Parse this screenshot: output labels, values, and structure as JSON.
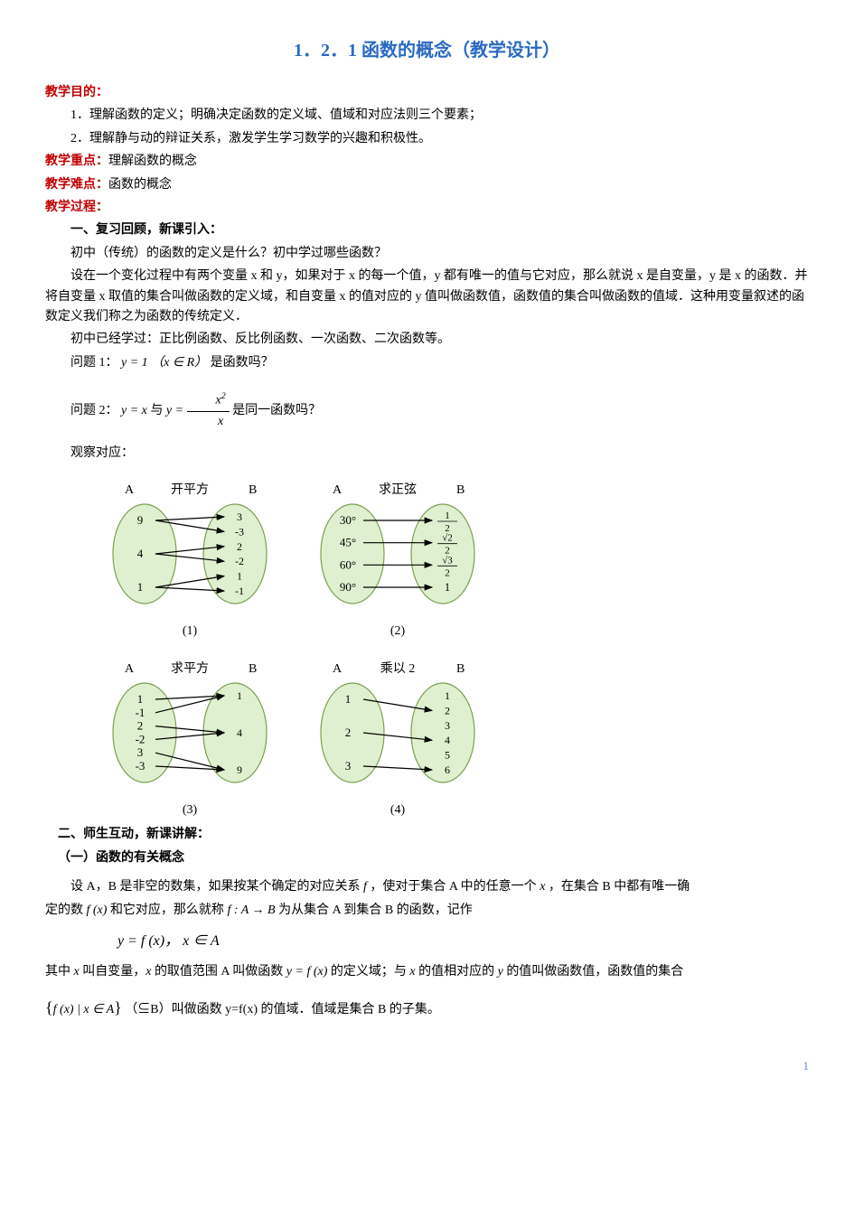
{
  "title": "1．2．1 函数的概念（教学设计）",
  "headings": {
    "objectives": "教学目的：",
    "keypoint_label": "教学重点：",
    "keypoint_text": "理解函数的概念",
    "difficulty_label": "教学难点：",
    "difficulty_text": "函数的概念",
    "process": "教学过程：",
    "section1": "一、复习回顾，新课引入：",
    "section2": "二、师生互动，新课讲解：",
    "sub1": "（一）函数的有关概念"
  },
  "objectives": {
    "o1": "1．理解函数的定义；明确决定函数的定义域、值域和对应法则三个要素；",
    "o2": "2．理解静与动的辩证关系，激发学生学习数学的兴趣和积极性。"
  },
  "body": {
    "p1": "初中（传统）的函数的定义是什么？初中学过哪些函数？",
    "p2": "设在一个变化过程中有两个变量 x 和 y，如果对于 x 的每一个值，y 都有唯一的值与它对应，那么就说 x 是自变量，y 是 x 的函数．并将自变量 x 取值的集合叫做函数的定义域，和自变量 x 的值对应的 y 值叫做函数值，函数值的集合叫做函数的值域．这种用变量叙述的函数定义我们称之为函数的传统定义．",
    "p3": "初中已经学过：正比例函数、反比例函数、一次函数、二次函数等。",
    "q1a": "问题 1：",
    "q1b": "是函数吗？",
    "q2a": "问题 2：",
    "q2b": "是同一函数吗？",
    "observe": "观察对应：",
    "def1a": "设 A，B 是非空的数集，如果按某个确定的对应关系 ",
    "def1b": "，使对于集合 A 中的任意一个 ",
    "def1c": "，在集合 B 中都有唯一确",
    "def2a": "定的数 ",
    "def2b": " 和它对应，那么就称 ",
    "def2c": " 为从集合 A 到集合 B 的函数，记作",
    "def3a": "其中 ",
    "def3b": " 叫自变量，",
    "def3c": " 的取值范围 A 叫做函数 ",
    "def3d": " 的定义域；与 ",
    "def3e": " 的值相对应的 ",
    "def3f": " 的值叫做函数值，函数值的集合",
    "def4": "（⊆B）叫做函数 y=f(x) 的值域．值域是集合 B 的子集。"
  },
  "math": {
    "q1_expr": "y = 1 （x ∈ R）",
    "q2_lhs": "y = x",
    "q2_mid": " 与 ",
    "q2_rhs_eq": "y = ",
    "q2_num": "x",
    "q2_den": "x",
    "f": "f",
    "x": "x",
    "y": "y",
    "fx": "f (x)",
    "fab": "f : A → B",
    "formula": "y = f (x)，  x ∈ A",
    "yfx": "y = f (x)",
    "set_pre": "{",
    "set_body": "f (x) | x ∈ A",
    "set_post": "}"
  },
  "diagrams": {
    "d1": {
      "labelA": "A",
      "title": "开平方",
      "labelB": "B",
      "left": [
        "9",
        "4",
        "1"
      ],
      "right": [
        "3",
        "-3",
        "2",
        "-2",
        "1",
        "-1"
      ],
      "edges": [
        [
          0,
          0
        ],
        [
          0,
          1
        ],
        [
          1,
          2
        ],
        [
          1,
          3
        ],
        [
          2,
          4
        ],
        [
          2,
          5
        ]
      ],
      "caption": "(1)"
    },
    "d2": {
      "labelA": "A",
      "title": "求正弦",
      "labelB": "B",
      "left": [
        "30°",
        "45°",
        "60°",
        "90°"
      ],
      "right_special": true,
      "edges": [
        [
          0,
          0
        ],
        [
          1,
          1
        ],
        [
          2,
          2
        ],
        [
          3,
          3
        ]
      ],
      "caption": "(2)"
    },
    "d3": {
      "labelA": "A",
      "title": "求平方",
      "labelB": "B",
      "left": [
        "1",
        "-1",
        "2",
        "-2",
        "3",
        "-3"
      ],
      "right": [
        "1",
        "4",
        "9"
      ],
      "edges": [
        [
          0,
          0
        ],
        [
          1,
          0
        ],
        [
          2,
          1
        ],
        [
          3,
          1
        ],
        [
          4,
          2
        ],
        [
          5,
          2
        ]
      ],
      "caption": "(3)"
    },
    "d4": {
      "labelA": "A",
      "title": "乘以 2",
      "labelB": "B",
      "left": [
        "1",
        "2",
        "3"
      ],
      "right": [
        "1",
        "2",
        "3",
        "4",
        "5",
        "6"
      ],
      "edges": [
        [
          0,
          1
        ],
        [
          1,
          3
        ],
        [
          2,
          5
        ]
      ],
      "caption": "(4)"
    },
    "colors": {
      "oval_fill": "#dff0d0",
      "oval_stroke": "#7aa050",
      "arrow": "#000000"
    }
  },
  "page_number": "1"
}
